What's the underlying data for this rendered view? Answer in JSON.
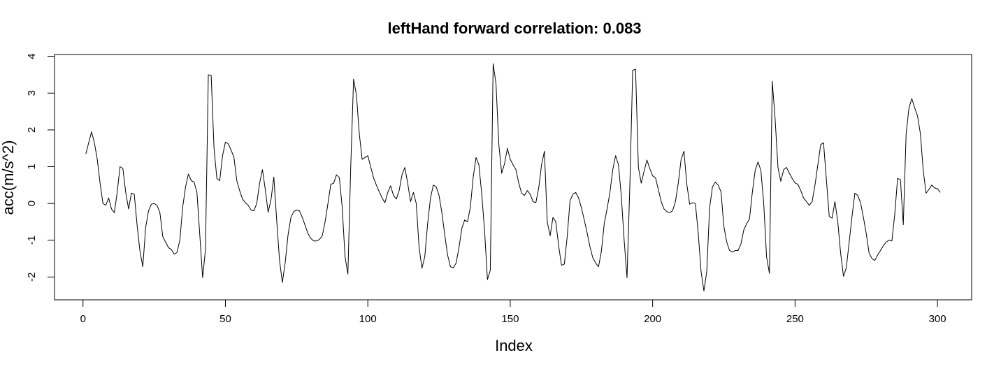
{
  "chart_data": {
    "type": "line",
    "title": "leftHand forward correlation: 0.083",
    "xlabel": "Index",
    "ylabel": "acc(m/s^2)",
    "xlim": [
      -10,
      312
    ],
    "ylim": [
      -2.62,
      4.05
    ],
    "xticks": [
      0,
      50,
      100,
      150,
      200,
      250,
      300
    ],
    "yticks": [
      -2,
      -1,
      0,
      1,
      2,
      3,
      4
    ],
    "grid": false,
    "legend": "none",
    "line_color": "#000000",
    "series": [
      {
        "x": [
          1,
          2,
          3,
          4,
          5,
          6,
          7,
          8,
          9,
          10,
          11,
          12,
          13,
          14,
          15,
          16,
          17,
          18,
          19,
          20,
          21,
          22,
          23,
          24,
          25,
          26,
          27,
          28,
          29,
          30,
          31,
          32,
          33,
          34,
          35,
          36,
          37,
          38,
          39,
          40,
          41,
          42,
          43,
          44,
          45,
          46,
          47,
          48,
          49,
          50,
          51,
          52,
          53,
          54,
          55,
          56,
          57,
          58,
          59,
          60,
          61,
          62,
          63,
          64,
          65,
          66,
          67,
          68,
          69,
          70,
          71,
          72,
          73,
          74,
          75,
          76,
          77,
          78,
          79,
          80,
          81,
          82,
          83,
          84,
          85,
          86,
          87,
          88,
          89,
          90,
          91,
          92,
          93,
          94,
          95,
          96,
          97,
          98,
          99,
          100,
          101,
          102,
          103,
          104,
          105,
          106,
          107,
          108,
          109,
          110,
          111,
          112,
          113,
          114,
          115,
          116,
          117,
          118,
          119,
          120,
          121,
          122,
          123,
          124,
          125,
          126,
          127,
          128,
          129,
          130,
          131,
          132,
          133,
          134,
          135,
          136,
          137,
          138,
          139,
          140,
          141,
          142,
          143,
          144,
          145,
          146,
          147,
          148,
          149,
          150,
          151,
          152,
          153,
          154,
          155,
          156,
          157,
          158,
          159,
          160,
          161,
          162,
          163,
          164,
          165,
          166,
          167,
          168,
          169,
          170,
          171,
          172,
          173,
          174,
          175,
          176,
          177,
          178,
          179,
          180,
          181,
          182,
          183,
          184,
          185,
          186,
          187,
          188,
          189,
          190,
          191,
          192,
          193,
          194,
          195,
          196,
          197,
          198,
          199,
          200,
          201,
          202,
          203,
          204,
          205,
          206,
          207,
          208,
          209,
          210,
          211,
          212,
          213,
          214,
          215,
          216,
          217,
          218,
          219,
          220,
          221,
          222,
          223,
          224,
          225,
          226,
          227,
          228,
          229,
          230,
          231,
          232,
          233,
          234,
          235,
          236,
          237,
          238,
          239,
          240,
          241,
          242,
          243,
          244,
          245,
          246,
          247,
          248,
          249,
          250,
          251,
          252,
          253,
          254,
          255,
          256,
          257,
          258,
          259,
          260,
          261,
          262,
          263,
          264,
          265,
          266,
          267,
          268,
          269,
          270,
          271,
          272,
          273,
          274,
          275,
          276,
          277,
          278,
          279,
          280,
          281,
          282,
          283,
          284,
          285,
          286,
          287,
          288,
          289,
          290,
          291,
          292,
          293,
          294,
          295,
          296,
          297,
          298,
          299,
          300,
          301
        ],
        "y": [
          1.35,
          1.65,
          1.95,
          1.65,
          1.2,
          0.55,
          0.0,
          -0.05,
          0.15,
          -0.15,
          -0.25,
          0.3,
          1.0,
          0.95,
          0.3,
          -0.15,
          0.28,
          0.25,
          -0.6,
          -1.3,
          -1.72,
          -0.65,
          -0.2,
          -0.02,
          0.0,
          -0.05,
          -0.25,
          -0.9,
          -1.05,
          -1.2,
          -1.25,
          -1.38,
          -1.33,
          -1.0,
          -0.1,
          0.45,
          0.8,
          0.62,
          0.58,
          0.3,
          -0.85,
          -2.02,
          -1.25,
          3.5,
          3.48,
          1.5,
          0.68,
          0.62,
          1.3,
          1.67,
          1.62,
          1.45,
          1.25,
          0.62,
          0.35,
          0.12,
          0.02,
          -0.05,
          -0.18,
          -0.2,
          0.0,
          0.55,
          0.92,
          0.38,
          -0.24,
          0.1,
          0.72,
          -0.45,
          -1.55,
          -2.15,
          -1.6,
          -0.85,
          -0.38,
          -0.22,
          -0.18,
          -0.2,
          -0.38,
          -0.6,
          -0.82,
          -0.95,
          -1.02,
          -1.02,
          -0.98,
          -0.88,
          -0.5,
          0.0,
          0.52,
          0.55,
          0.78,
          0.7,
          -0.1,
          -1.45,
          -1.92,
          1.0,
          3.38,
          2.95,
          1.9,
          1.2,
          1.25,
          1.3,
          1.0,
          0.7,
          0.5,
          0.32,
          0.15,
          0.02,
          0.3,
          0.48,
          0.22,
          0.12,
          0.35,
          0.78,
          0.98,
          0.55,
          0.05,
          0.3,
          0.0,
          -1.2,
          -1.76,
          -1.45,
          -0.55,
          0.15,
          0.5,
          0.45,
          0.22,
          -0.25,
          -0.85,
          -1.4,
          -1.72,
          -1.75,
          -1.62,
          -1.2,
          -0.68,
          -0.45,
          -0.5,
          -0.1,
          0.72,
          1.25,
          1.05,
          0.25,
          -0.75,
          -2.07,
          -1.82,
          3.8,
          3.25,
          1.6,
          0.82,
          1.08,
          1.5,
          1.2,
          1.05,
          0.92,
          0.55,
          0.28,
          0.22,
          0.35,
          0.25,
          0.05,
          0.02,
          0.42,
          1.05,
          1.42,
          -0.5,
          -0.88,
          -0.38,
          -0.5,
          -1.15,
          -1.68,
          -1.65,
          -0.9,
          0.08,
          0.25,
          0.3,
          0.15,
          -0.12,
          -0.45,
          -0.8,
          -1.18,
          -1.48,
          -1.62,
          -1.72,
          -1.3,
          -0.55,
          -0.15,
          0.3,
          0.92,
          1.3,
          1.05,
          0.2,
          -1.0,
          -2.02,
          0.5,
          3.62,
          3.65,
          0.98,
          0.55,
          0.88,
          1.18,
          0.95,
          0.75,
          0.7,
          0.38,
          0.05,
          -0.15,
          -0.22,
          -0.25,
          -0.2,
          0.05,
          0.55,
          1.2,
          1.42,
          0.52,
          -0.02,
          0.02,
          0.0,
          -0.8,
          -1.85,
          -2.38,
          -1.85,
          -0.12,
          0.45,
          0.58,
          0.5,
          0.32,
          -0.62,
          -1.05,
          -1.28,
          -1.32,
          -1.28,
          -1.28,
          -1.1,
          -0.72,
          -0.55,
          -0.42,
          0.3,
          0.9,
          1.13,
          0.9,
          0.0,
          -1.45,
          -1.9,
          3.32,
          2.3,
          0.98,
          0.6,
          0.92,
          0.98,
          0.82,
          0.68,
          0.56,
          0.52,
          0.35,
          0.15,
          0.05,
          -0.05,
          0.05,
          0.5,
          1.05,
          1.6,
          1.65,
          0.65,
          -0.35,
          -0.4,
          0.05,
          -0.5,
          -1.35,
          -1.98,
          -1.75,
          -1.05,
          -0.35,
          0.28,
          0.22,
          0.02,
          -0.38,
          -0.82,
          -1.35,
          -1.5,
          -1.55,
          -1.4,
          -1.28,
          -1.15,
          -1.05,
          -1.0,
          -1.02,
          -0.3,
          0.68,
          0.65,
          -0.58,
          1.9,
          2.6,
          2.85,
          2.6,
          2.38,
          1.9,
          0.9,
          0.28,
          0.38,
          0.5,
          0.42,
          0.4,
          0.3
        ]
      }
    ]
  }
}
